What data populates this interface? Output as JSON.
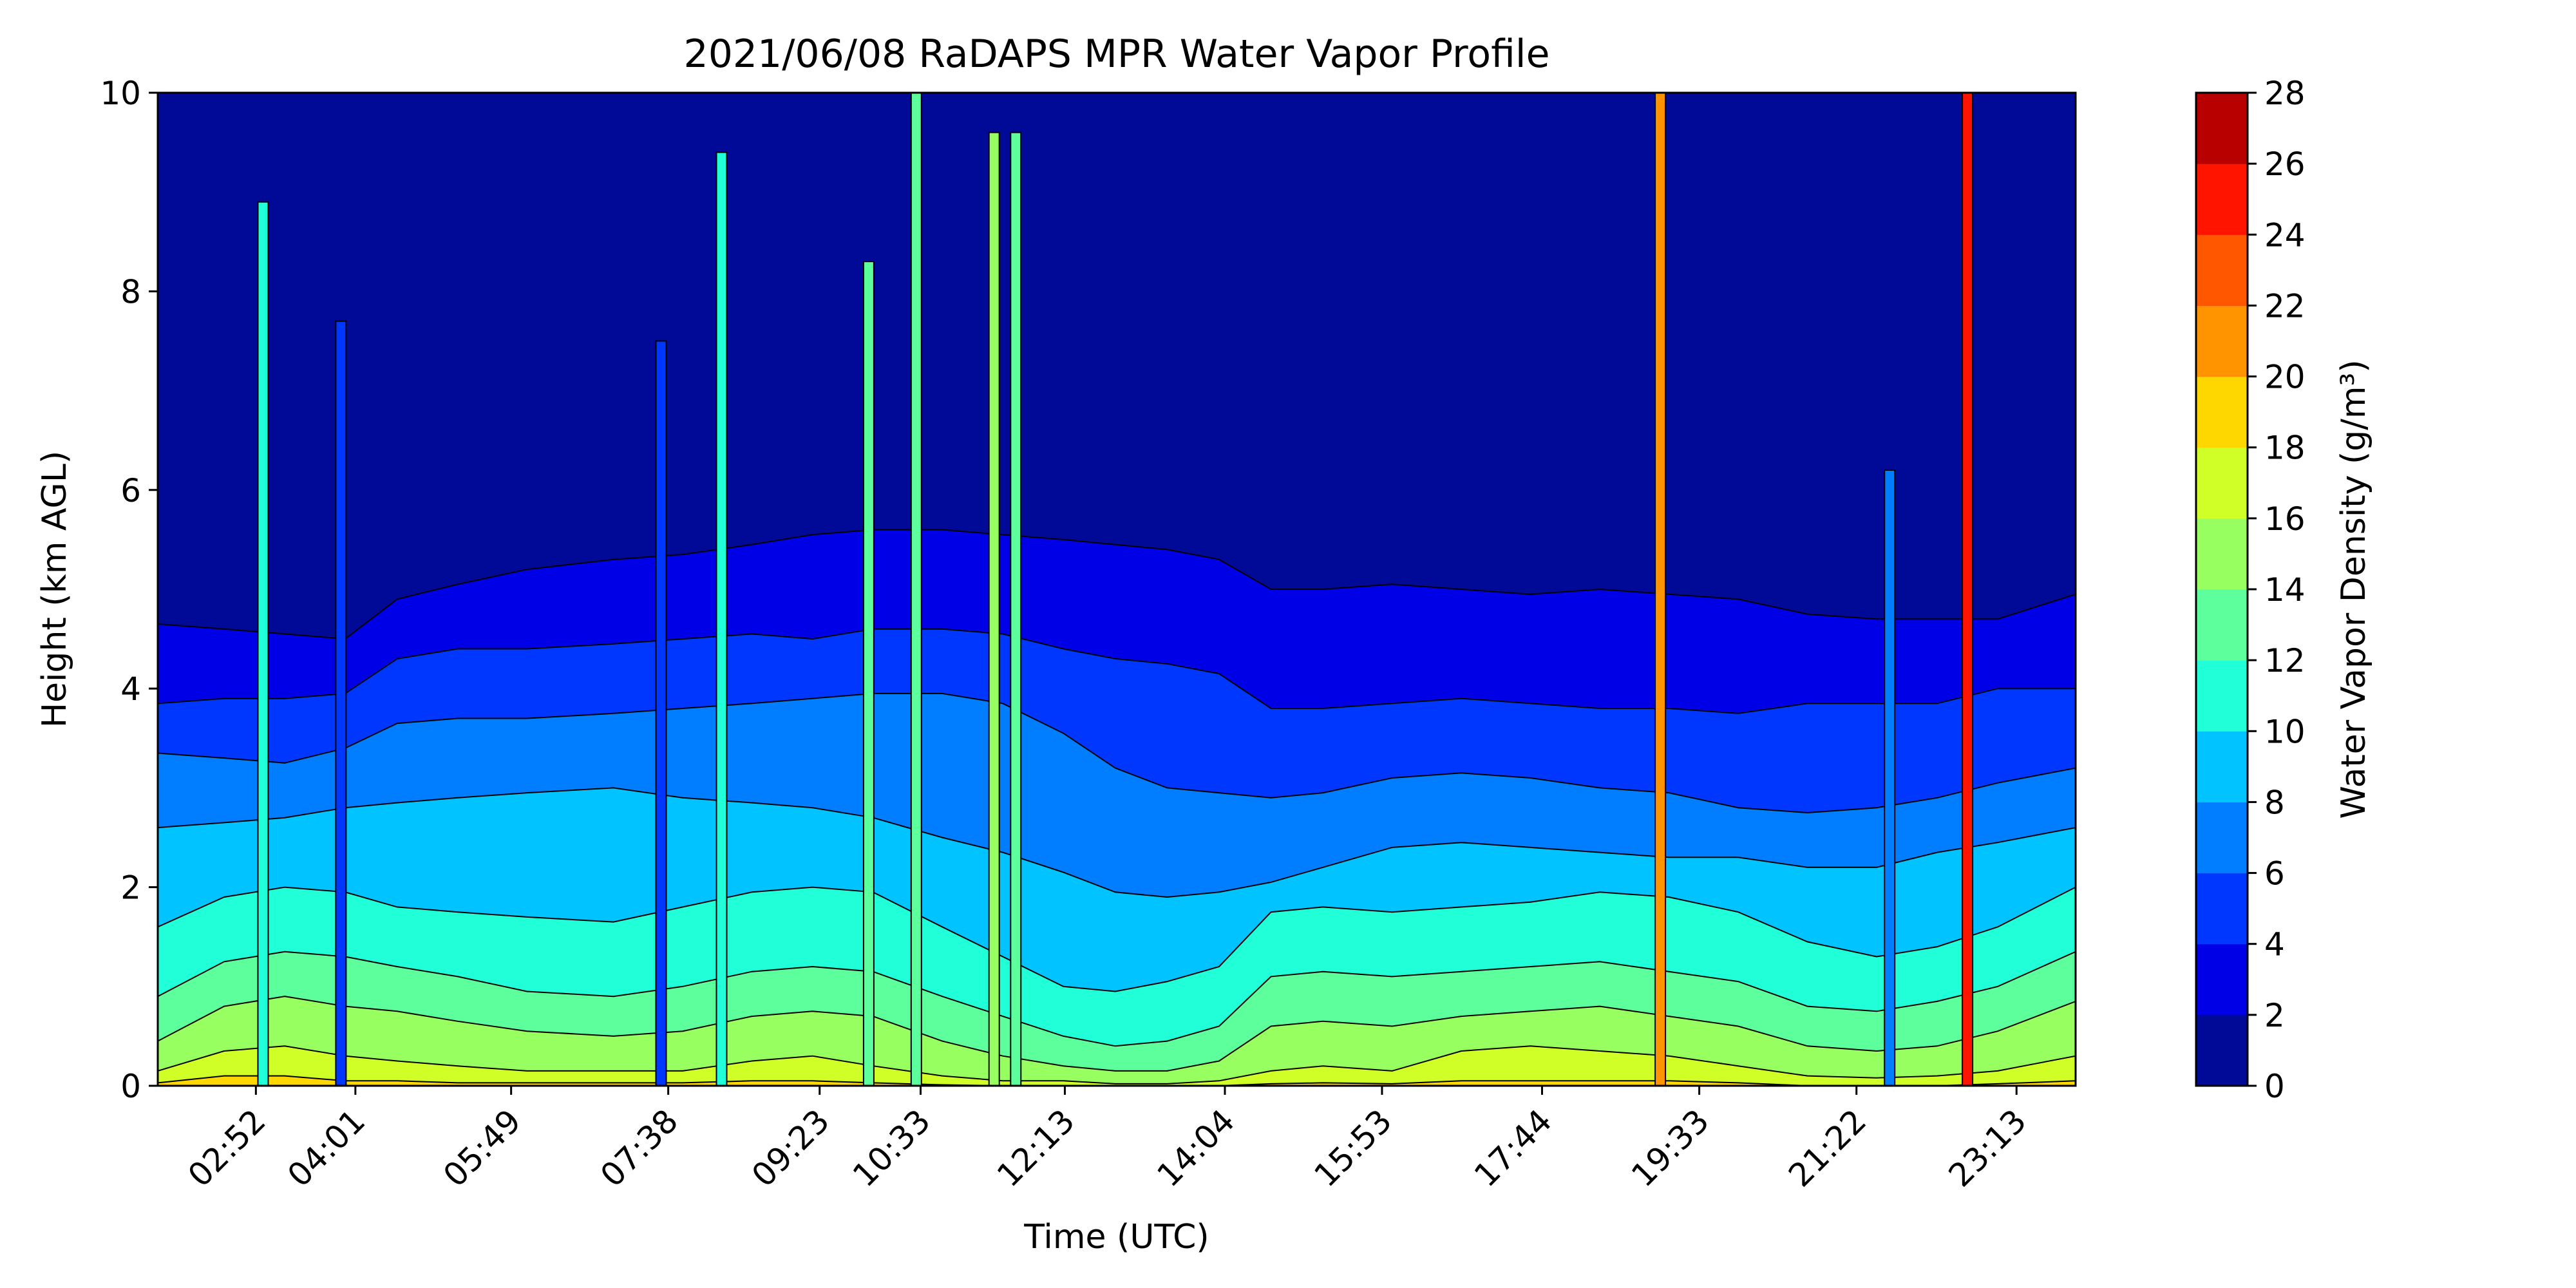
{
  "chart_data": {
    "type": "heatmap",
    "subtype": "filled-contour",
    "title": "2021/06/08 RaDAPS MPR Water Vapor Profile",
    "xlabel": "Time (UTC)",
    "ylabel": "Height (km AGL)",
    "x_tick_labels": [
      "02:52",
      "04:01",
      "05:49",
      "07:38",
      "09:23",
      "10:33",
      "12:13",
      "14:04",
      "15:53",
      "17:44",
      "19:33",
      "21:22",
      "23:13"
    ],
    "x_tick_hours": [
      2.867,
      4.017,
      5.817,
      7.633,
      9.383,
      10.55,
      12.217,
      14.067,
      15.883,
      17.733,
      19.55,
      21.367,
      23.217
    ],
    "xlim_hours": [
      1.733,
      23.9
    ],
    "ylim": [
      0,
      10
    ],
    "y_ticks": [
      0,
      2,
      4,
      6,
      8,
      10
    ],
    "colorbar": {
      "label": "Water Vapor Density (g/m³)",
      "levels": [
        0,
        2,
        4,
        6,
        8,
        10,
        12,
        14,
        16,
        18,
        20,
        22,
        24,
        26,
        28
      ],
      "tick_labels": [
        "0",
        "2",
        "4",
        "6",
        "8",
        "10",
        "12",
        "14",
        "16",
        "18",
        "20",
        "22",
        "24",
        "26",
        "28"
      ],
      "colors": [
        "#000a96",
        "#0000e6",
        "#0037ff",
        "#007eff",
        "#00c3ff",
        "#21ffd8",
        "#5cff9c",
        "#97ff60",
        "#d0ff27",
        "#ffd700",
        "#ff9400",
        "#ff5600",
        "#ff1400",
        "#b80000"
      ]
    },
    "contour_heights_km": {
      "times_h": [
        1.733,
        2.5,
        3.2,
        3.9,
        4.5,
        5.2,
        6.0,
        7.0,
        7.8,
        8.6,
        9.3,
        10.0,
        10.8,
        11.5,
        12.2,
        12.8,
        13.4,
        14.0,
        14.6,
        15.2,
        16.0,
        16.8,
        17.6,
        18.4,
        19.2,
        20.0,
        20.8,
        21.6,
        22.3,
        23.0,
        23.9
      ],
      "level_2": [
        4.65,
        4.6,
        4.55,
        4.5,
        4.9,
        5.05,
        5.2,
        5.3,
        5.35,
        5.45,
        5.55,
        5.6,
        5.6,
        5.55,
        5.5,
        5.45,
        5.4,
        5.3,
        5.0,
        5.0,
        5.05,
        5.0,
        4.95,
        5.0,
        4.95,
        4.9,
        4.75,
        4.7,
        4.7,
        4.7,
        4.95
      ],
      "level_4": [
        3.85,
        3.9,
        3.9,
        3.95,
        4.3,
        4.4,
        4.4,
        4.45,
        4.5,
        4.55,
        4.5,
        4.6,
        4.6,
        4.55,
        4.4,
        4.3,
        4.25,
        4.15,
        3.8,
        3.8,
        3.85,
        3.9,
        3.85,
        3.8,
        3.8,
        3.75,
        3.85,
        3.85,
        3.85,
        4.0,
        4.0
      ],
      "level_6": [
        3.35,
        3.3,
        3.25,
        3.4,
        3.65,
        3.7,
        3.7,
        3.75,
        3.8,
        3.85,
        3.9,
        3.95,
        3.95,
        3.85,
        3.55,
        3.2,
        3.0,
        2.95,
        2.9,
        2.95,
        3.1,
        3.15,
        3.1,
        3.0,
        2.95,
        2.8,
        2.75,
        2.8,
        2.9,
        3.05,
        3.2
      ],
      "level_8": [
        2.6,
        2.65,
        2.7,
        2.8,
        2.85,
        2.9,
        2.95,
        3.0,
        2.9,
        2.85,
        2.8,
        2.7,
        2.5,
        2.35,
        2.15,
        1.95,
        1.9,
        1.95,
        2.05,
        2.2,
        2.4,
        2.45,
        2.4,
        2.35,
        2.3,
        2.3,
        2.2,
        2.2,
        2.35,
        2.45,
        2.6
      ],
      "level_10": [
        1.6,
        1.9,
        2.0,
        1.95,
        1.8,
        1.75,
        1.7,
        1.65,
        1.8,
        1.95,
        2.0,
        1.95,
        1.6,
        1.3,
        1.0,
        0.95,
        1.05,
        1.2,
        1.75,
        1.8,
        1.75,
        1.8,
        1.85,
        1.95,
        1.9,
        1.75,
        1.45,
        1.3,
        1.4,
        1.6,
        2.0
      ],
      "level_12": [
        0.9,
        1.25,
        1.35,
        1.3,
        1.2,
        1.1,
        0.95,
        0.9,
        1.0,
        1.15,
        1.2,
        1.15,
        0.9,
        0.7,
        0.5,
        0.4,
        0.45,
        0.6,
        1.1,
        1.15,
        1.1,
        1.15,
        1.2,
        1.25,
        1.15,
        1.05,
        0.8,
        0.75,
        0.85,
        1.0,
        1.35
      ],
      "level_14": [
        0.45,
        0.8,
        0.9,
        0.8,
        0.75,
        0.65,
        0.55,
        0.5,
        0.55,
        0.7,
        0.75,
        0.7,
        0.45,
        0.3,
        0.2,
        0.15,
        0.15,
        0.25,
        0.6,
        0.65,
        0.6,
        0.7,
        0.75,
        0.8,
        0.7,
        0.6,
        0.4,
        0.35,
        0.4,
        0.55,
        0.85
      ],
      "level_16": [
        0.15,
        0.35,
        0.4,
        0.3,
        0.25,
        0.2,
        0.15,
        0.15,
        0.15,
        0.25,
        0.3,
        0.2,
        0.1,
        0.05,
        0.05,
        0.02,
        0.02,
        0.05,
        0.15,
        0.2,
        0.15,
        0.35,
        0.4,
        0.35,
        0.3,
        0.2,
        0.1,
        0.08,
        0.1,
        0.15,
        0.3
      ],
      "level_18": [
        0.03,
        0.1,
        0.1,
        0.05,
        0.05,
        0.03,
        0.03,
        0.03,
        0.03,
        0.05,
        0.05,
        0.03,
        0.01,
        0.0,
        0.0,
        0.0,
        0.0,
        0.0,
        0.02,
        0.03,
        0.02,
        0.05,
        0.05,
        0.05,
        0.05,
        0.03,
        0.0,
        0.0,
        0.0,
        0.02,
        0.05
      ]
    },
    "rain_spikes": [
      {
        "time_h": 2.95,
        "top_km": 8.9,
        "value": 11
      },
      {
        "time_h": 3.85,
        "top_km": 7.7,
        "value": 5
      },
      {
        "time_h": 7.55,
        "top_km": 7.5,
        "value": 5
      },
      {
        "time_h": 8.25,
        "top_km": 9.4,
        "value": 11
      },
      {
        "time_h": 9.95,
        "top_km": 8.3,
        "value": 12
      },
      {
        "time_h": 10.5,
        "top_km": 10.0,
        "value": 13
      },
      {
        "time_h": 11.4,
        "top_km": 9.6,
        "value": 14
      },
      {
        "time_h": 11.65,
        "top_km": 9.6,
        "value": 13
      },
      {
        "time_h": 19.1,
        "top_km": 10.0,
        "value": 21
      },
      {
        "time_h": 21.75,
        "top_km": 6.2,
        "value": 7
      },
      {
        "time_h": 22.65,
        "top_km": 10.0,
        "value": 24
      }
    ]
  }
}
